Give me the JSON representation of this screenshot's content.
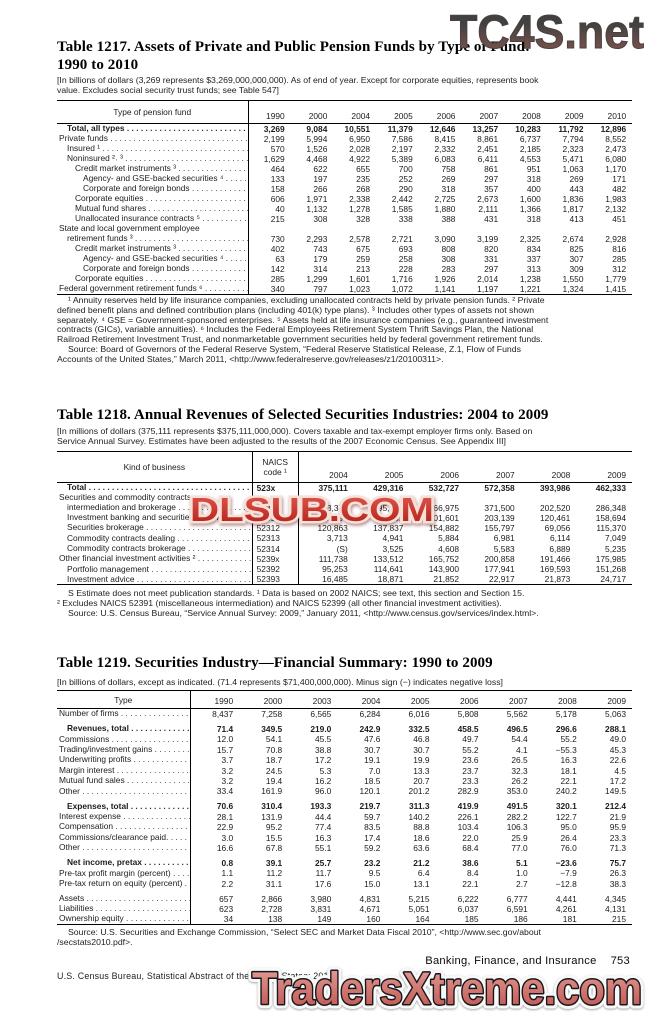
{
  "watermarks": {
    "top": "TC4S.net",
    "middle": "DLSUB.COM",
    "bottom": "TradersXtreme.com",
    "top_gradient": [
      "#414141",
      "#8a574e"
    ],
    "middle_fill": [
      "#e25b52",
      "#b01d14"
    ],
    "middle_stroke": "#f6e0d8",
    "bottom_fill": [
      "#e8a39b",
      "#bc4f4a"
    ],
    "bottom_stroke_outer": "#f8f8f6",
    "bottom_stroke_inner": "#17171f"
  },
  "table1217": {
    "title": [
      "Table 1217. Assets of Private and Public Pension Funds by Type of Fund:",
      "1990 to 2010"
    ],
    "note": [
      "[In billions of dollars (3,269 represents $3,269,000,000,000). As of end of year. Except for corporate equities, represents book",
      "value. Excludes social security trust funds; see Table 547]"
    ],
    "label_header": "Type of pension fund",
    "years": [
      "1990",
      "2000",
      "2004",
      "2005",
      "2006",
      "2007",
      "2008",
      "2009",
      "2010"
    ],
    "rows": [
      {
        "label": "Total, all types",
        "indent": 1,
        "bold": true,
        "values": [
          "3,269",
          "9,084",
          "10,551",
          "11,379",
          "12,646",
          "13,257",
          "10,283",
          "11,792",
          "12,896"
        ]
      },
      {
        "label": "Private funds",
        "indent": 0,
        "values": [
          "2,199",
          "5,994",
          "6,950",
          "7,586",
          "8,415",
          "8,861",
          "6,737",
          "7,794",
          "8,552"
        ]
      },
      {
        "label": "Insured ¹",
        "indent": 1,
        "values": [
          "570",
          "1,526",
          "2,028",
          "2,197",
          "2,332",
          "2,451",
          "2,185",
          "2,323",
          "2,473"
        ]
      },
      {
        "label": "Noninsured ²˒ ³",
        "indent": 1,
        "values": [
          "1,629",
          "4,468",
          "4,922",
          "5,389",
          "6,083",
          "6,411",
          "4,553",
          "5,471",
          "6,080"
        ]
      },
      {
        "label": "Credit market instruments ³",
        "indent": 2,
        "values": [
          "464",
          "622",
          "655",
          "700",
          "758",
          "861",
          "951",
          "1,063",
          "1,170"
        ]
      },
      {
        "label": "Agency- and GSE-backed securities ⁴",
        "indent": 3,
        "values": [
          "133",
          "197",
          "235",
          "252",
          "269",
          "297",
          "318",
          "269",
          "171"
        ]
      },
      {
        "label": "Corporate and foreign bonds",
        "indent": 3,
        "values": [
          "158",
          "266",
          "268",
          "290",
          "318",
          "357",
          "400",
          "443",
          "482"
        ]
      },
      {
        "label": "Corporate equities",
        "indent": 2,
        "values": [
          "606",
          "1,971",
          "2,338",
          "2,442",
          "2,725",
          "2,673",
          "1,600",
          "1,836",
          "1,983"
        ]
      },
      {
        "label": "Mutual fund shares",
        "indent": 2,
        "values": [
          "40",
          "1,132",
          "1,278",
          "1,585",
          "1,880",
          "2,111",
          "1,366",
          "1,817",
          "2,132"
        ]
      },
      {
        "label": "Unallocated insurance contracts ⁵",
        "indent": 2,
        "values": [
          "215",
          "308",
          "328",
          "338",
          "388",
          "431",
          "318",
          "413",
          "451"
        ]
      },
      {
        "label": "State and local government employee",
        "label2": "retirement funds ³",
        "indent": 0,
        "indent2": 1,
        "values": [
          "730",
          "2,293",
          "2,578",
          "2,721",
          "3,090",
          "3,199",
          "2,325",
          "2,674",
          "2,928"
        ]
      },
      {
        "label": "Credit market instruments ³",
        "indent": 2,
        "values": [
          "402",
          "743",
          "675",
          "693",
          "808",
          "820",
          "834",
          "825",
          "816"
        ]
      },
      {
        "label": "Agency- and GSE-backed securities ⁴",
        "indent": 3,
        "values": [
          "63",
          "179",
          "259",
          "258",
          "308",
          "331",
          "337",
          "307",
          "285"
        ]
      },
      {
        "label": "Corporate and foreign bonds",
        "indent": 3,
        "values": [
          "142",
          "314",
          "213",
          "228",
          "283",
          "297",
          "313",
          "309",
          "312"
        ]
      },
      {
        "label": "Corporate equities",
        "indent": 2,
        "values": [
          "285",
          "1,299",
          "1,601",
          "1,716",
          "1,926",
          "2,014",
          "1,238",
          "1,550",
          "1,779"
        ]
      },
      {
        "label": "Federal government retirement funds ⁶",
        "indent": 0,
        "values": [
          "340",
          "797",
          "1,023",
          "1,072",
          "1,141",
          "1,197",
          "1,221",
          "1,324",
          "1,415"
        ]
      }
    ],
    "footnotes": [
      {
        "t": "¹ Annuity reserves held by life insurance companies, excluding unallocated contracts held by private pension funds. ² Private",
        "i": true
      },
      {
        "t": "defined benefit plans and defined contribution plans (including 401(k) type plans). ³ Includes other types of assets not shown",
        "i": false
      },
      {
        "t": "separately. ⁴ GSE = Government-sponsored enterprises. ⁵ Assets held at life insurance companies (e.g., guaranteed investment",
        "i": false
      },
      {
        "t": "contracts (GICs), variable annuities). ⁶ Includes the Federal Employees Retirement System Thrift Savings Plan, the National",
        "i": false
      },
      {
        "t": "Railroad Retirement Investment Trust, and nonmarketable government securities held by federal government retirement funds.",
        "i": false
      },
      {
        "t": "Source: Board of Governors of the Federal Reserve System, “Federal Reserve Statistical Release, Z.1, Flow of Funds",
        "i": true
      },
      {
        "t": "Accounts of the United States,” March 2011, <http://www.federalreserve.gov/releases/z1/20100311>.",
        "i": false
      }
    ]
  },
  "table1218": {
    "title": [
      "Table 1218. Annual Revenues of Selected Securities Industries: 2004 to 2009"
    ],
    "note": [
      "[In millions of dollars (375,111 represents $375,111,000,000). Covers taxable and tax-exempt employer firms only. Based on",
      "Service Annual Survey. Estimates have been adjusted to the results of the 2007 Economic Census. See Appendix III]"
    ],
    "label_header": "Kind of business",
    "code_header": [
      "NAICS",
      "code ¹"
    ],
    "years": [
      "2004",
      "2005",
      "2006",
      "2007",
      "2008",
      "2009"
    ],
    "rows": [
      {
        "label": "Total",
        "indent": 1,
        "bold": true,
        "code": "523x",
        "values": [
          "375,111",
          "429,316",
          "532,727",
          "572,358",
          "393,986",
          "462,333"
        ]
      },
      {
        "label": "Securities and commodity contracts",
        "label2": "intermediation and brokerage",
        "indent": 0,
        "indent2": 1,
        "code": "5231x",
        "values": [
          "263,373",
          "295,804",
          "366,975",
          "371,500",
          "202,520",
          "286,348"
        ]
      },
      {
        "label": "Investment banking and securities dealing",
        "indent": 1,
        "code": "52311",
        "values": [
          "138,797",
          "149,501",
          "201,601",
          "203,139",
          "120,461",
          "158,694"
        ]
      },
      {
        "label": "Securities brokerage",
        "indent": 1,
        "code": "52312",
        "values": [
          "120,863",
          "137,837",
          "154,882",
          "155,797",
          "69,056",
          "115,370"
        ]
      },
      {
        "label": "Commodity contracts dealing",
        "indent": 1,
        "code": "52313",
        "values": [
          "3,713",
          "4,941",
          "5,884",
          "6,981",
          "6,114",
          "7,049"
        ]
      },
      {
        "label": "Commodity contracts brokerage",
        "indent": 1,
        "code": "52314",
        "values": [
          "(S)",
          "3,525",
          "4,608",
          "5,583",
          "6,889",
          "5,235"
        ]
      },
      {
        "label": "Other financial investment activities ²",
        "indent": 0,
        "code": "5239x",
        "values": [
          "111,738",
          "133,512",
          "165,752",
          "200,858",
          "191,466",
          "175,985"
        ]
      },
      {
        "label": "Portfolio management",
        "indent": 1,
        "code": "52392",
        "values": [
          "95,253",
          "114,641",
          "143,900",
          "177,941",
          "169,593",
          "151,268"
        ]
      },
      {
        "label": "Investment advice",
        "indent": 1,
        "code": "52393",
        "values": [
          "16,485",
          "18,871",
          "21,852",
          "22,917",
          "21,873",
          "24,717"
        ]
      }
    ],
    "footnotes": [
      {
        "t": "S Estimate does not meet publication standards. ¹ Data is based on 2002 NAICS; see text, this section and Section 15.",
        "i": true
      },
      {
        "t": "² Excludes NAICS 52391 (miscellaneous intermediation) and NAICS 52399 (all other financial investment activities).",
        "i": false
      },
      {
        "t": "Source: U.S. Census Bureau, “Service Annual Survey: 2009,” January 2011, <http://www.census.gov/services/index.html>.",
        "i": true
      }
    ]
  },
  "table1219": {
    "title": [
      "Table 1219. Securities Industry—Financial Summary: 1990 to 2009"
    ],
    "note": [
      "[In billions of dollars, except as indicated. (71.4 represents $71,400,000,000). Minus sign (−) indicates negative loss]"
    ],
    "label_header": "Type",
    "years": [
      "1990",
      "2000",
      "2003",
      "2004",
      "2005",
      "2006",
      "2007",
      "2008",
      "2009"
    ],
    "rows": [
      {
        "label": "Number of firms",
        "indent": 0,
        "values": [
          "8,437",
          "7,258",
          "6,565",
          "6,284",
          "6,016",
          "5,808",
          "5,562",
          "5,178",
          "5,063"
        ]
      },
      {
        "label": "Revenues, total",
        "indent": 1,
        "bold": true,
        "gap": true,
        "values": [
          "71.4",
          "349.5",
          "219.0",
          "242.9",
          "332.5",
          "458.5",
          "496.5",
          "296.6",
          "288.1"
        ]
      },
      {
        "label": "Commissions",
        "indent": 0,
        "values": [
          "12.0",
          "54.1",
          "45.5",
          "47.6",
          "46.8",
          "49.7",
          "54.4",
          "55.2",
          "49.0"
        ]
      },
      {
        "label": "Trading/investment gains",
        "indent": 0,
        "values": [
          "15.7",
          "70.8",
          "38.8",
          "30.7",
          "30.7",
          "55.2",
          "4.1",
          "−55.3",
          "45.3"
        ]
      },
      {
        "label": "Underwriting profits",
        "indent": 0,
        "values": [
          "3.7",
          "18.7",
          "17.2",
          "19.1",
          "19.9",
          "23.6",
          "26.5",
          "16.3",
          "22.6"
        ]
      },
      {
        "label": "Margin interest",
        "indent": 0,
        "values": [
          "3.2",
          "24.5",
          "5.3",
          "7.0",
          "13.3",
          "23.7",
          "32.3",
          "18.1",
          "4.5"
        ]
      },
      {
        "label": "Mutual fund sales",
        "indent": 0,
        "values": [
          "3.2",
          "19.4",
          "16.2",
          "18.5",
          "20.7",
          "23.3",
          "26.2",
          "22.1",
          "17.2"
        ]
      },
      {
        "label": "Other",
        "indent": 0,
        "values": [
          "33.4",
          "161.9",
          "96.0",
          "120.1",
          "201.2",
          "282.9",
          "353.0",
          "240.2",
          "149.5"
        ]
      },
      {
        "label": "Expenses, total",
        "indent": 1,
        "bold": true,
        "gap": true,
        "values": [
          "70.6",
          "310.4",
          "193.3",
          "219.7",
          "311.3",
          "419.9",
          "491.5",
          "320.1",
          "212.4"
        ]
      },
      {
        "label": "Interest expense",
        "indent": 0,
        "values": [
          "28.1",
          "131.9",
          "44.4",
          "59.7",
          "140.2",
          "226.1",
          "282.2",
          "122.7",
          "21.9"
        ]
      },
      {
        "label": "Compensation",
        "indent": 0,
        "values": [
          "22.9",
          "95.2",
          "77.4",
          "83.5",
          "88.8",
          "103.4",
          "106.3",
          "95.0",
          "95.9"
        ]
      },
      {
        "label": "Commissions/clearance paid.",
        "indent": 0,
        "values": [
          "3.0",
          "15.5",
          "16.3",
          "17.4",
          "18.6",
          "22.0",
          "25.9",
          "26.4",
          "23.3"
        ]
      },
      {
        "label": "Other",
        "indent": 0,
        "values": [
          "16.6",
          "67.8",
          "55.1",
          "59.2",
          "63.6",
          "68.4",
          "77.0",
          "76.0",
          "71.3"
        ]
      },
      {
        "label": "Net income, pretax",
        "indent": 1,
        "bold": true,
        "gap": true,
        "values": [
          "0.8",
          "39.1",
          "25.7",
          "23.2",
          "21.2",
          "38.6",
          "5.1",
          "−23.6",
          "75.7"
        ]
      },
      {
        "label": "Pre-tax profit margin (percent)",
        "indent": 0,
        "values": [
          "1.1",
          "11.2",
          "11.7",
          "9.5",
          "6.4",
          "8.4",
          "1.0",
          "−7.9",
          "26.3"
        ]
      },
      {
        "label": "Pre-tax return on equity (percent)",
        "indent": 0,
        "values": [
          "2.2",
          "31.1",
          "17.6",
          "15.0",
          "13.1",
          "22.1",
          "2.7",
          "−12.8",
          "38.3"
        ]
      },
      {
        "label": "Assets",
        "indent": 0,
        "gap": true,
        "values": [
          "657",
          "2,866",
          "3,980",
          "4,831",
          "5,215",
          "6,222",
          "6,777",
          "4,441",
          "4,345"
        ]
      },
      {
        "label": "Liabilities",
        "indent": 0,
        "values": [
          "623",
          "2,728",
          "3,831",
          "4,671",
          "5,051",
          "6,037",
          "6,591",
          "4,261",
          "4,131"
        ]
      },
      {
        "label": "Ownership equity",
        "indent": 0,
        "values": [
          "34",
          "138",
          "149",
          "160",
          "164",
          "185",
          "186",
          "181",
          "215"
        ]
      }
    ],
    "footnotes": [
      {
        "t": "Source: U.S. Securities and Exchange Commission, “Select SEC and Market Data Fiscal 2010”, <http://www.sec.gov/about",
        "i": true
      },
      {
        "t": "/secstats2010.pdf>.",
        "i": false
      }
    ]
  },
  "footer": {
    "section": "Banking, Finance, and Insurance",
    "page": "753",
    "credit": "U.S. Census Bureau, Statistical Abstract of the United States: 2012"
  }
}
